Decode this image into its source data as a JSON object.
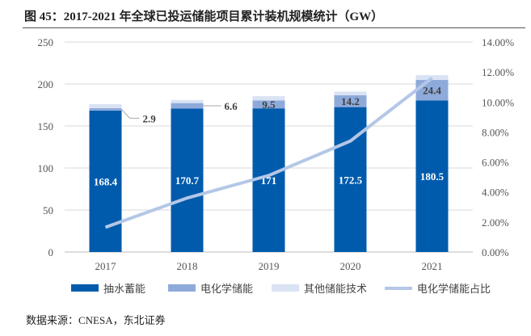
{
  "title": "图 45：2017-2021 年全球已投运储能项目累计装机规模统计（GW）",
  "source": "数据来源：CNESA，东北证券",
  "colors": {
    "pumped": "#005BAC",
    "electro": "#8EAADB",
    "other": "#DAE3F3",
    "line": "#B4C7E7"
  },
  "chart_data": {
    "type": "bar",
    "stacked": true,
    "categories": [
      "2017",
      "2018",
      "2019",
      "2020",
      "2021"
    ],
    "series": [
      {
        "name": "抽水蓄能",
        "values": [
          168.4,
          170.7,
          171,
          172.5,
          180.5
        ],
        "labels": [
          "168.4",
          "170.7",
          "171",
          "172.5",
          "180.5"
        ]
      },
      {
        "name": "电化学储能",
        "values": [
          2.9,
          6.6,
          9.5,
          14.2,
          24.4
        ],
        "labels": [
          "2.9",
          "6.6",
          "9.5",
          "14.2",
          "24.4"
        ]
      },
      {
        "name": "其他储能技术",
        "values": [
          4.7,
          3.7,
          5,
          4.3,
          5.6
        ]
      }
    ],
    "line_series": {
      "name": "电化学储能占比",
      "axis": "right",
      "values": [
        1.65,
        3.6,
        5.1,
        7.4,
        11.6
      ]
    },
    "ylim": [
      0,
      250
    ],
    "yticks": [
      "0",
      "50",
      "100",
      "150",
      "200",
      "250"
    ],
    "y2lim": [
      0,
      14
    ],
    "y2ticks": [
      "0.00%",
      "2.00%",
      "4.00%",
      "6.00%",
      "8.00%",
      "10.00%",
      "12.00%",
      "14.00%"
    ],
    "grid": true,
    "legend": "bottom"
  }
}
